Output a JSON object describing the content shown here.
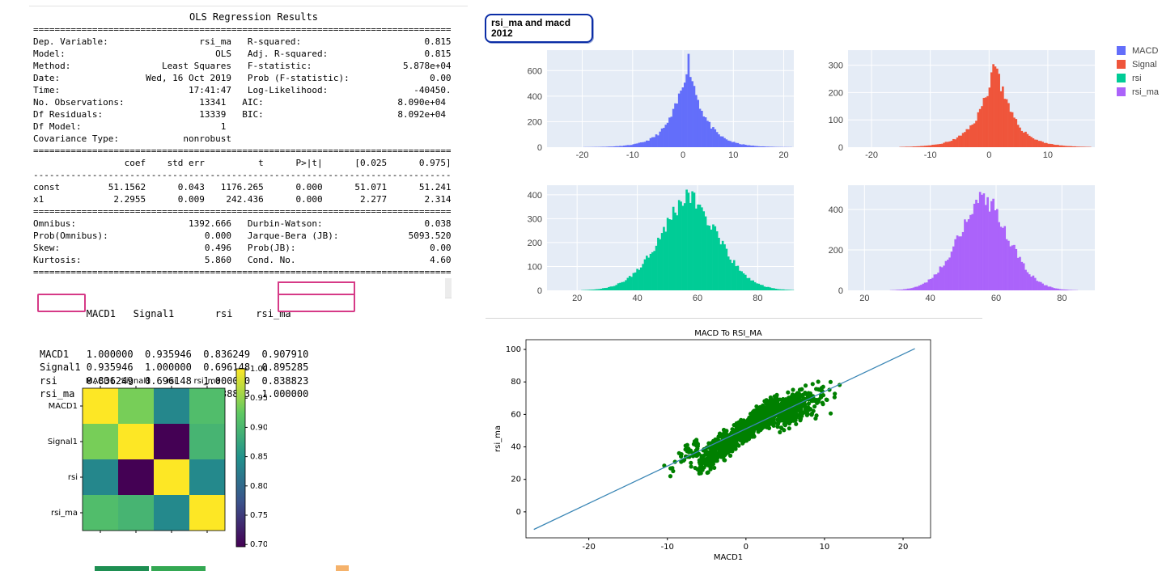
{
  "ols": {
    "title": "OLS Regression Results",
    "lines": [
      "==============================================================================",
      "Dep. Variable:                 rsi_ma   R-squared:                       0.815",
      "Model:                            OLS   Adj. R-squared:                  0.815",
      "Method:                 Least Squares   F-statistic:                 5.878e+04",
      "Date:                Wed, 16 Oct 2019   Prob (F-statistic):               0.00",
      "Time:                        17:41:47   Log-Likelihood:                -40450.",
      "No. Observations:              13341   AIC:                         8.090e+04",
      "Df Residuals:                  13339   BIC:                         8.092e+04",
      "Df Model:                          1",
      "Covariance Type:            nonrobust",
      "==============================================================================",
      "                 coef    std err          t      P>|t|      [0.025      0.975]",
      "------------------------------------------------------------------------------",
      "const         51.1562      0.043   1176.265      0.000      51.071      51.241",
      "x1             2.2955      0.009    242.436      0.000       2.277       2.314",
      "==============================================================================",
      "Omnibus:                     1392.666   Durbin-Watson:                   0.038",
      "Prob(Omnibus):                  0.000   Jarque-Bera (JB):             5093.520",
      "Skew:                           0.496   Prob(JB):                         0.00",
      "Kurtosis:                       5.860   Cond. No.                         4.60",
      "=============================================================================="
    ]
  },
  "corr_table": {
    "header": "        MACD1   Signal1       rsi    rsi_ma",
    "rows": [
      "MACD1   1.000000  0.935946  0.836249  0.907910",
      "Signal1 0.935946  1.000000  0.696148  0.895285",
      "rsi     0.836249  0.696148  1.000000  0.838823",
      "rsi_ma  0.907910  0.895285  0.838823  1.000000"
    ]
  },
  "annotation": {
    "line1": "rsi_ma and macd",
    "line2": "2012"
  },
  "legend": [
    {
      "name": "MACD",
      "color": "#636efa"
    },
    {
      "name": "Signal",
      "color": "#ef553b"
    },
    {
      "name": "rsi",
      "color": "#00cc96"
    },
    {
      "name": "rsi_ma",
      "color": "#ab63fa"
    }
  ],
  "chart_data": [
    {
      "type": "heatmap",
      "labels": [
        "MACD1",
        "Signal1",
        "rsi",
        "rsi_ma"
      ],
      "values": [
        [
          1.0,
          0.935946,
          0.836249,
          0.90791
        ],
        [
          0.935946,
          1.0,
          0.696148,
          0.895285
        ],
        [
          0.836249,
          0.696148,
          1.0,
          0.838823
        ],
        [
          0.90791,
          0.895285,
          0.838823,
          1.0
        ]
      ],
      "colorbar_ticks": [
        "1.00",
        "0.95",
        "0.90",
        "0.85",
        "0.80",
        "0.75",
        "0.70"
      ],
      "colorbar_range": [
        0.696148,
        1.0
      ],
      "colormap": "viridis"
    },
    {
      "type": "bar",
      "series_name": "MACD",
      "color": "#636efa",
      "x_ticks": [
        -20,
        -10,
        0,
        10,
        20
      ],
      "y_ticks": [
        0,
        200,
        400,
        600
      ],
      "xlim": [
        -27,
        22
      ],
      "ylim": [
        0,
        760
      ],
      "peak_x": 1,
      "peak_y": 720,
      "spread": 3.6
    },
    {
      "type": "bar",
      "series_name": "Signal",
      "color": "#ef553b",
      "x_ticks": [
        -20,
        -10,
        0,
        10
      ],
      "y_ticks": [
        0,
        100,
        200,
        300
      ],
      "xlim": [
        -24,
        18
      ],
      "ylim": [
        0,
        355
      ],
      "peak_x": 1,
      "peak_y": 335,
      "spread": 3.3
    },
    {
      "type": "bar",
      "series_name": "rsi",
      "color": "#00cc96",
      "x_ticks": [
        20,
        40,
        60,
        80
      ],
      "y_ticks": [
        0,
        100,
        200,
        300,
        400
      ],
      "xlim": [
        10,
        92
      ],
      "ylim": [
        0,
        440
      ],
      "peak_x": 57,
      "peak_y": 412,
      "spread": 11.5
    },
    {
      "type": "bar",
      "series_name": "rsi_ma",
      "color": "#ab63fa",
      "x_ticks": [
        20,
        40,
        60,
        80
      ],
      "y_ticks": [
        0,
        200,
        400
      ],
      "xlim": [
        15,
        90
      ],
      "ylim": [
        0,
        520
      ],
      "peak_x": 56,
      "peak_y": 488,
      "spread": 9
    },
    {
      "type": "scatter",
      "title": "MACD To RSI_MA",
      "xlabel": "MACD1",
      "ylabel": "rsi_ma",
      "x_ticks": [
        -20,
        -10,
        0,
        10,
        20
      ],
      "y_ticks": [
        0,
        20,
        40,
        60,
        80,
        100
      ],
      "xlim": [
        -28,
        23.5
      ],
      "ylim": [
        -16,
        106
      ],
      "point_color": "#008000",
      "line_color": "#3a86b5",
      "regression": {
        "intercept": 51.1562,
        "slope": 2.2955,
        "x_range": [
          -27,
          21.5
        ]
      }
    }
  ]
}
